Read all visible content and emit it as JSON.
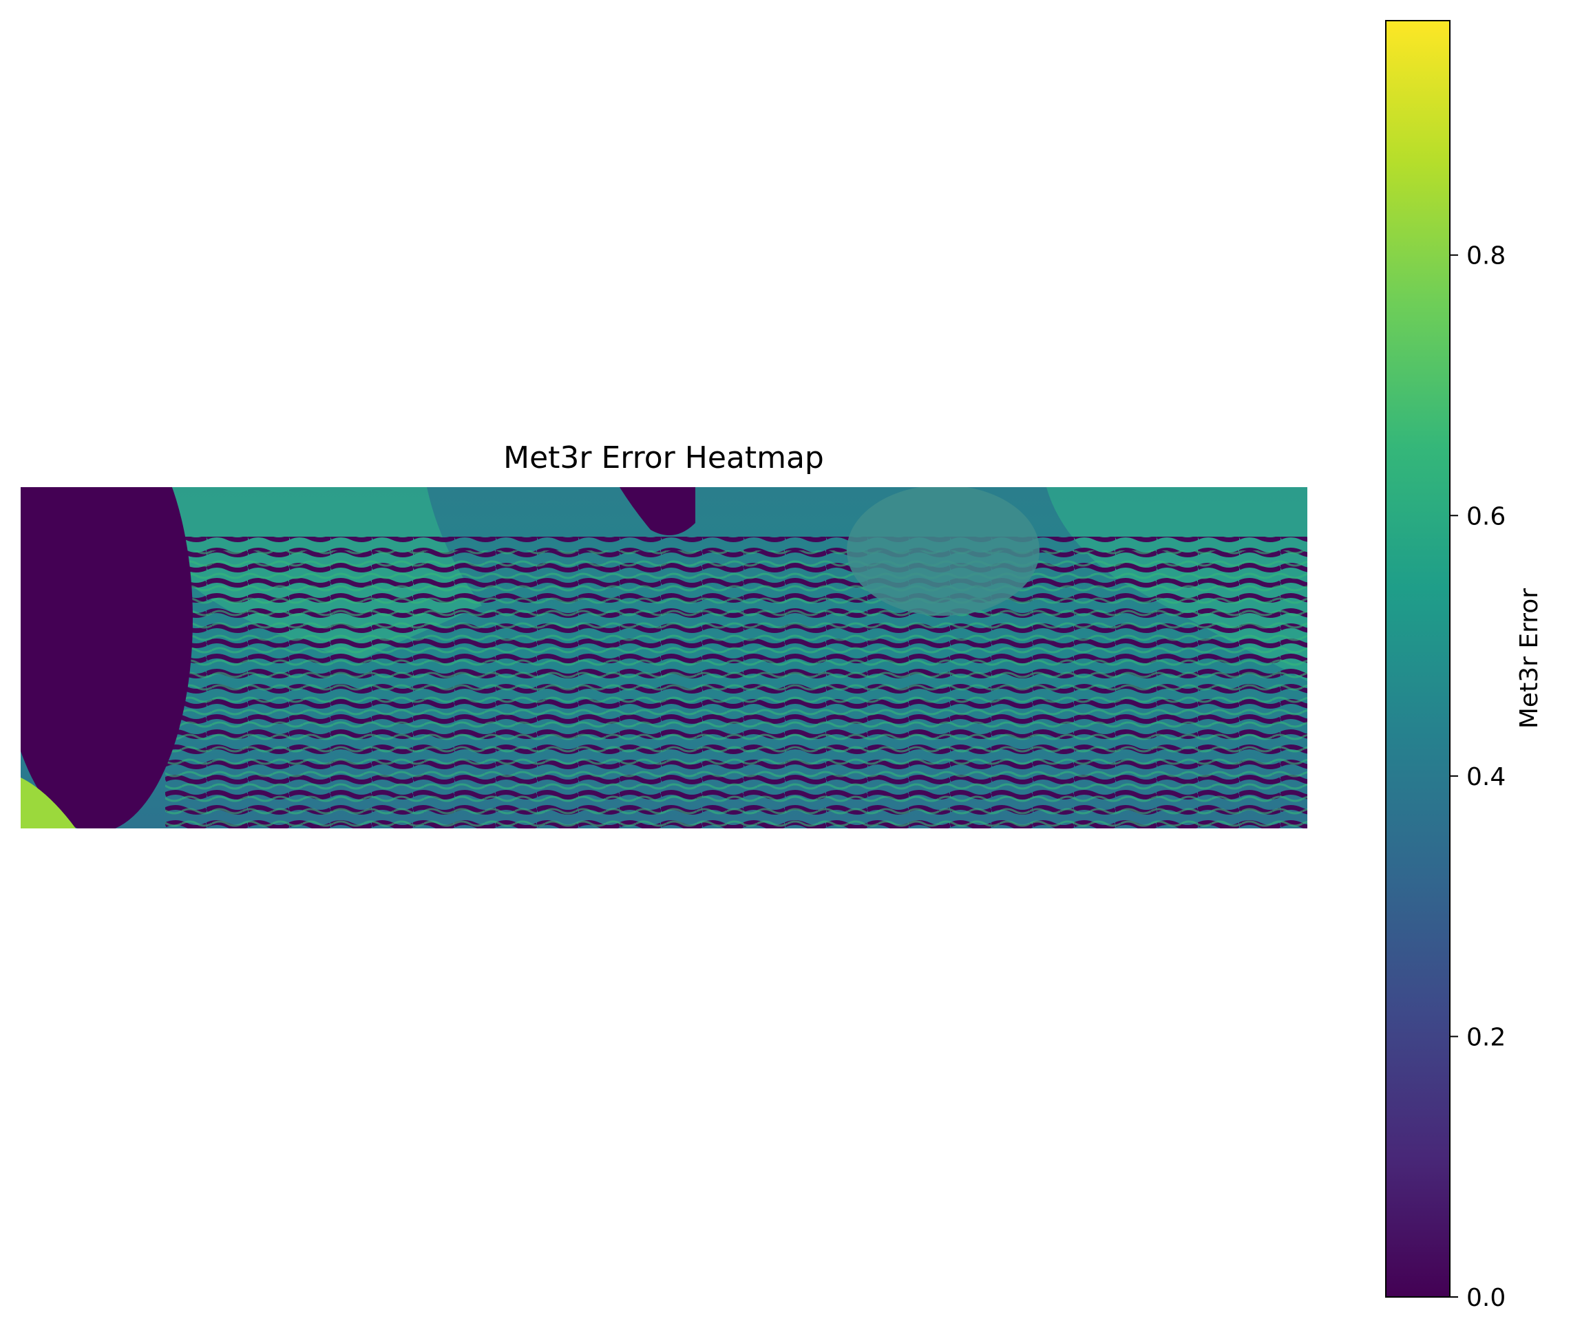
{
  "chart_data": {
    "type": "heatmap",
    "title": "Met3r Error Heatmap",
    "axes_visible": false,
    "colormap": "viridis",
    "colormap_stops": [
      "#440154",
      "#482878",
      "#3e4989",
      "#31688e",
      "#26828e",
      "#1f9e89",
      "#35b779",
      "#6ece58",
      "#b5de2b",
      "#fde725"
    ],
    "colorbar": {
      "label": "Met3r Error",
      "range": [
        0,
        0.98
      ],
      "ticks": [
        {
          "value": 0.0,
          "label": "0.0"
        },
        {
          "value": 0.2,
          "label": "0.2"
        },
        {
          "value": 0.4,
          "label": "0.4"
        },
        {
          "value": 0.6,
          "label": "0.6"
        },
        {
          "value": 0.8,
          "label": "0.8"
        }
      ]
    }
  }
}
